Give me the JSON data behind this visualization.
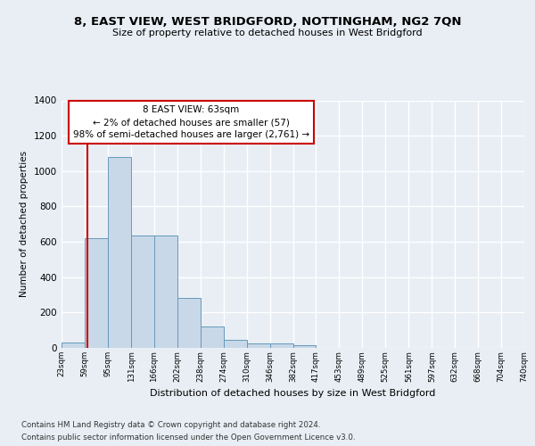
{
  "title": "8, EAST VIEW, WEST BRIDGFORD, NOTTINGHAM, NG2 7QN",
  "subtitle": "Size of property relative to detached houses in West Bridgford",
  "xlabel": "Distribution of detached houses by size in West Bridgford",
  "ylabel": "Number of detached properties",
  "bar_color": "#c8d8e8",
  "bar_edge_color": "#6699bb",
  "annotation_box_color": "#cc0000",
  "annotation_text": "8 EAST VIEW: 63sqm\n← 2% of detached houses are smaller (57)\n98% of semi-detached houses are larger (2,761) →",
  "property_line_x": 63,
  "footer_line1": "Contains HM Land Registry data © Crown copyright and database right 2024.",
  "footer_line2": "Contains public sector information licensed under the Open Government Licence v3.0.",
  "bin_edges": [
    23,
    59,
    95,
    131,
    166,
    202,
    238,
    274,
    310,
    346,
    382,
    417,
    453,
    489,
    525,
    561,
    597,
    632,
    668,
    704,
    740
  ],
  "bin_labels": [
    "23sqm",
    "59sqm",
    "95sqm",
    "131sqm",
    "166sqm",
    "202sqm",
    "238sqm",
    "274sqm",
    "310sqm",
    "346sqm",
    "382sqm",
    "417sqm",
    "453sqm",
    "489sqm",
    "525sqm",
    "561sqm",
    "597sqm",
    "632sqm",
    "668sqm",
    "704sqm",
    "740sqm"
  ],
  "bar_heights": [
    30,
    620,
    1080,
    635,
    635,
    285,
    120,
    45,
    25,
    25,
    15,
    0,
    0,
    0,
    0,
    0,
    0,
    0,
    0,
    0
  ],
  "ylim": [
    0,
    1400
  ],
  "yticks": [
    0,
    200,
    400,
    600,
    800,
    1000,
    1200,
    1400
  ],
  "background_color": "#e8eef4",
  "grid_color": "#ffffff"
}
